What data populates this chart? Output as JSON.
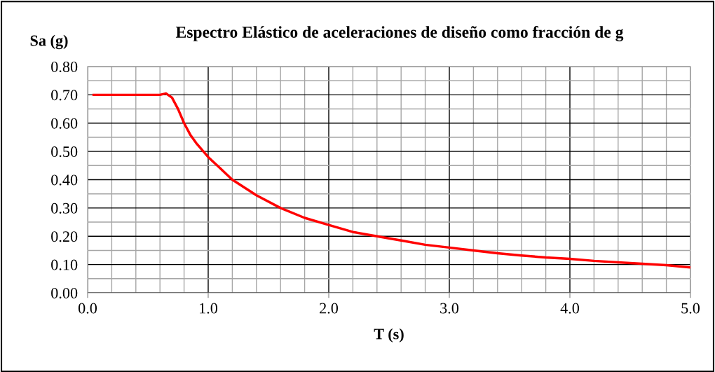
{
  "chart_data": {
    "type": "line",
    "title": "Espectro Elástico de aceleraciones de diseño como fracción de g",
    "xlabel": "T (s)",
    "ylabel": "Sa (g)",
    "xlim": [
      0,
      5
    ],
    "ylim": [
      0,
      0.8
    ],
    "xticks": [
      {
        "value": 0,
        "label": "0.0"
      },
      {
        "value": 0.2,
        "label": null
      },
      {
        "value": 0.4,
        "label": null
      },
      {
        "value": 0.6,
        "label": null
      },
      {
        "value": 0.8,
        "label": null
      },
      {
        "value": 1,
        "label": "1.0"
      },
      {
        "value": 1.2,
        "label": null
      },
      {
        "value": 1.4,
        "label": null
      },
      {
        "value": 1.6,
        "label": null
      },
      {
        "value": 1.8,
        "label": null
      },
      {
        "value": 2,
        "label": "2.0"
      },
      {
        "value": 2.2,
        "label": null
      },
      {
        "value": 2.4,
        "label": null
      },
      {
        "value": 2.6,
        "label": null
      },
      {
        "value": 2.8,
        "label": null
      },
      {
        "value": 3,
        "label": "3.0"
      },
      {
        "value": 3.2,
        "label": null
      },
      {
        "value": 3.4,
        "label": null
      },
      {
        "value": 3.6,
        "label": null
      },
      {
        "value": 3.8,
        "label": null
      },
      {
        "value": 4,
        "label": "4.0"
      },
      {
        "value": 4.2,
        "label": null
      },
      {
        "value": 4.4,
        "label": null
      },
      {
        "value": 4.6,
        "label": null
      },
      {
        "value": 4.8,
        "label": null
      },
      {
        "value": 5,
        "label": "5.0"
      }
    ],
    "yticks": [
      {
        "value": 0,
        "label": "0.00"
      },
      {
        "value": 0.05,
        "label": null
      },
      {
        "value": 0.1,
        "label": "0.10"
      },
      {
        "value": 0.15,
        "label": null
      },
      {
        "value": 0.2,
        "label": "0.20"
      },
      {
        "value": 0.25,
        "label": null
      },
      {
        "value": 0.3,
        "label": "0.30"
      },
      {
        "value": 0.35,
        "label": null
      },
      {
        "value": 0.4,
        "label": "0.40"
      },
      {
        "value": 0.45,
        "label": null
      },
      {
        "value": 0.5,
        "label": "0.50"
      },
      {
        "value": 0.55,
        "label": null
      },
      {
        "value": 0.6,
        "label": "0.60"
      },
      {
        "value": 0.65,
        "label": null
      },
      {
        "value": 0.7,
        "label": "0.70"
      },
      {
        "value": 0.75,
        "label": null
      },
      {
        "value": 0.8,
        "label": "0.80"
      }
    ],
    "grid": true,
    "marker": "none",
    "line_style": "solid",
    "x": [
      0.05,
      0.6,
      0.65,
      0.7,
      0.75,
      0.8,
      0.85,
      0.9,
      1.0,
      1.1,
      1.2,
      1.4,
      1.6,
      1.8,
      2.0,
      2.2,
      2.4,
      2.6,
      2.8,
      3.0,
      3.2,
      3.4,
      3.6,
      3.8,
      4.0,
      4.2,
      4.4,
      4.6,
      4.8,
      5.0
    ],
    "series": [
      {
        "color": "#ff0000",
        "values": [
          0.7,
          0.7,
          0.705,
          0.69,
          0.65,
          0.6,
          0.56,
          0.53,
          0.48,
          0.44,
          0.4,
          0.345,
          0.3,
          0.265,
          0.24,
          0.215,
          0.2,
          0.185,
          0.17,
          0.16,
          0.15,
          0.14,
          0.132,
          0.125,
          0.12,
          0.113,
          0.108,
          0.103,
          0.098,
          0.09
        ]
      }
    ]
  }
}
